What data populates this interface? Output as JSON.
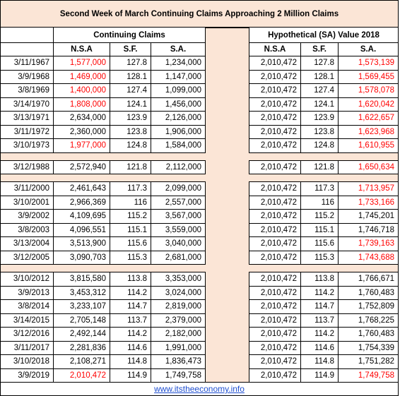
{
  "title": "Second Week of March Continuing Claims  Approaching 2 Million Claims",
  "left_header": "Continuing Claims",
  "right_header": "Hypothetical (SA) Value 2018",
  "columns": [
    "N.S.A",
    "S.F.",
    "S.A.",
    "N.S.A",
    "S.F.",
    "S.A."
  ],
  "highlight_color": "#ff0000",
  "groups": [
    {
      "rows": [
        {
          "cells": [
            "3/11/1967",
            "1,577,000",
            "127.8",
            "1,234,000",
            "2,010,472",
            "127.8",
            "1,573,139"
          ],
          "red": [
            1,
            6
          ]
        },
        {
          "cells": [
            "3/9/1968",
            "1,469,000",
            "128.1",
            "1,147,000",
            "2,010,472",
            "128.1",
            "1,569,455"
          ],
          "red": [
            1,
            6
          ]
        },
        {
          "cells": [
            "3/8/1969",
            "1,400,000",
            "127.4",
            "1,099,000",
            "2,010,472",
            "127.4",
            "1,578,078"
          ],
          "red": [
            1,
            6
          ]
        },
        {
          "cells": [
            "3/14/1970",
            "1,808,000",
            "124.1",
            "1,456,000",
            "2,010,472",
            "124.1",
            "1,620,042"
          ],
          "red": [
            1,
            6
          ]
        },
        {
          "cells": [
            "3/13/1971",
            "2,634,000",
            "123.9",
            "2,126,000",
            "2,010,472",
            "123.9",
            "1,622,657"
          ],
          "red": [
            6
          ]
        },
        {
          "cells": [
            "3/11/1972",
            "2,360,000",
            "123.8",
            "1,906,000",
            "2,010,472",
            "123.8",
            "1,623,968"
          ],
          "red": [
            6
          ]
        },
        {
          "cells": [
            "3/10/1973",
            "1,977,000",
            "124.8",
            "1,584,000",
            "2,010,472",
            "124.8",
            "1,610,955"
          ],
          "red": [
            1,
            6
          ]
        }
      ]
    },
    {
      "rows": [
        {
          "cells": [
            "3/12/1988",
            "2,572,940",
            "121.8",
            "2,112,000",
            "2,010,472",
            "121.8",
            "1,650,634"
          ],
          "red": [
            6
          ]
        }
      ]
    },
    {
      "rows": [
        {
          "cells": [
            "3/11/2000",
            "2,461,643",
            "117.3",
            "2,099,000",
            "2,010,472",
            "117.3",
            "1,713,957"
          ],
          "red": [
            6
          ]
        },
        {
          "cells": [
            "3/10/2001",
            "2,966,369",
            "116",
            "2,557,000",
            "2,010,472",
            "116",
            "1,733,166"
          ],
          "red": [
            6
          ]
        },
        {
          "cells": [
            "3/9/2002",
            "4,109,695",
            "115.2",
            "3,567,000",
            "2,010,472",
            "115.2",
            "1,745,201"
          ],
          "red": []
        },
        {
          "cells": [
            "3/8/2003",
            "4,096,551",
            "115.1",
            "3,559,000",
            "2,010,472",
            "115.1",
            "1,746,718"
          ],
          "red": []
        },
        {
          "cells": [
            "3/13/2004",
            "3,513,900",
            "115.6",
            "3,040,000",
            "2,010,472",
            "115.6",
            "1,739,163"
          ],
          "red": [
            6
          ]
        },
        {
          "cells": [
            "3/12/2005",
            "3,090,703",
            "115.3",
            "2,681,000",
            "2,010,472",
            "115.3",
            "1,743,688"
          ],
          "red": [
            6
          ]
        }
      ]
    },
    {
      "rows": [
        {
          "cells": [
            "3/10/2012",
            "3,815,580",
            "113.8",
            "3,353,000",
            "2,010,472",
            "113.8",
            "1,766,671"
          ],
          "red": []
        },
        {
          "cells": [
            "3/9/2013",
            "3,453,312",
            "114.2",
            "3,024,000",
            "2,010,472",
            "114.2",
            "1,760,483"
          ],
          "red": []
        },
        {
          "cells": [
            "3/8/2014",
            "3,233,107",
            "114.7",
            "2,819,000",
            "2,010,472",
            "114.7",
            "1,752,809"
          ],
          "red": []
        },
        {
          "cells": [
            "3/14/2015",
            "2,705,148",
            "113.7",
            "2,379,000",
            "2,010,472",
            "113.7",
            "1,768,225"
          ],
          "red": []
        },
        {
          "cells": [
            "3/12/2016",
            "2,492,144",
            "114.2",
            "2,182,000",
            "2,010,472",
            "114.2",
            "1,760,483"
          ],
          "red": []
        },
        {
          "cells": [
            "3/11/2017",
            "2,281,836",
            "114.6",
            "1,991,000",
            "2,010,472",
            "114.6",
            "1,754,339"
          ],
          "red": []
        },
        {
          "cells": [
            "3/10/2018",
            "2,108,271",
            "114.8",
            "1,836,473",
            "2,010,472",
            "114.8",
            "1,751,282"
          ],
          "red": []
        },
        {
          "cells": [
            "3/9/2019",
            "2,010,472",
            "114.9",
            "1,749,758",
            "2,010,472",
            "114.9",
            "1,749,758"
          ],
          "red": [
            1,
            6
          ]
        }
      ]
    }
  ],
  "footer": "www.itstheeconomy.info"
}
